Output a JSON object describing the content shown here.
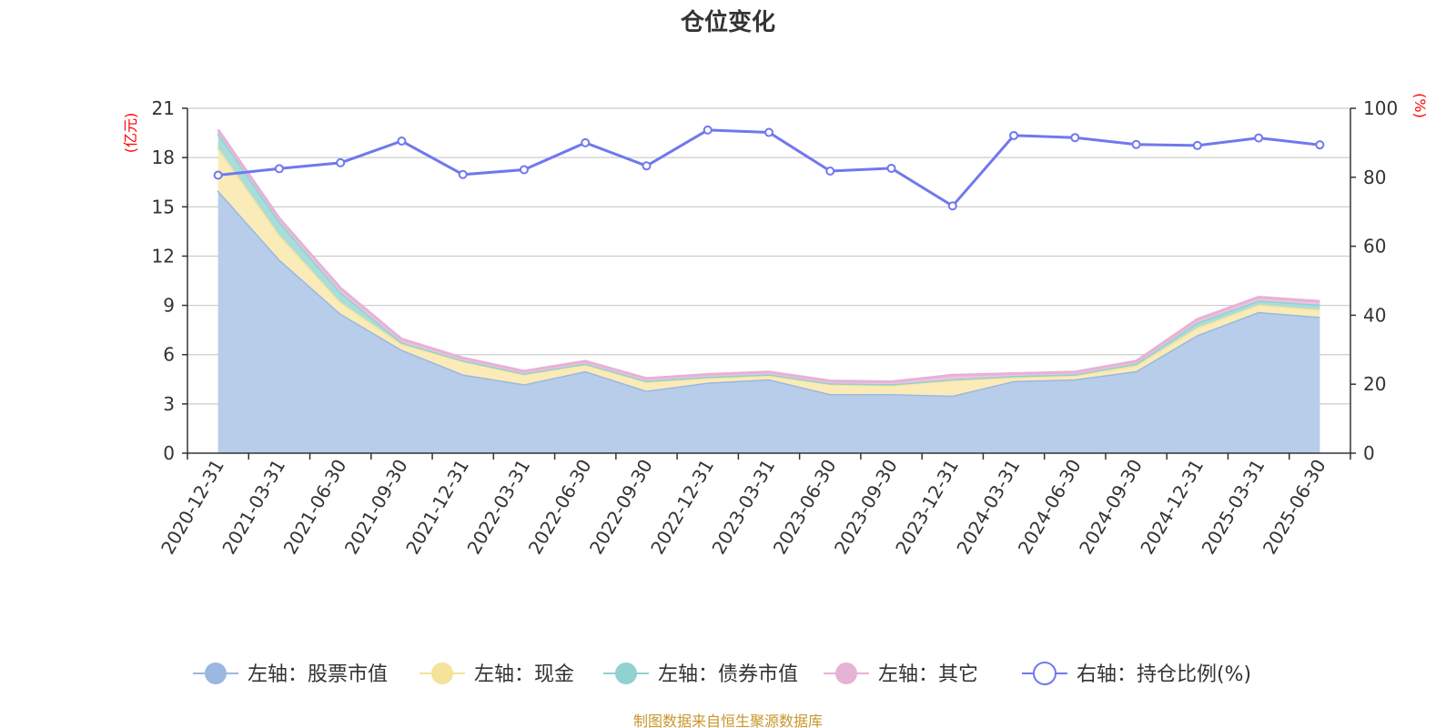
{
  "chart_data": {
    "type": "area",
    "title": "仓位变化",
    "categories": [
      "2020-12-31",
      "2021-03-31",
      "2021-06-30",
      "2021-09-30",
      "2021-12-31",
      "2022-03-31",
      "2022-06-30",
      "2022-09-30",
      "2022-12-31",
      "2023-03-31",
      "2023-06-30",
      "2023-09-30",
      "2023-12-31",
      "2024-03-31",
      "2024-06-30",
      "2024-09-30",
      "2024-12-31",
      "2025-03-31",
      "2025-06-30"
    ],
    "left_axis": {
      "unit": "(亿元)",
      "ylim": [
        0,
        21
      ],
      "ticks": [
        "0",
        "3",
        "6",
        "9",
        "12",
        "15",
        "18",
        "21"
      ]
    },
    "right_axis": {
      "unit": "(%)",
      "ylim": [
        0,
        100
      ],
      "ticks": [
        "0",
        "20",
        "40",
        "60",
        "80",
        "100"
      ]
    },
    "series": [
      {
        "name": "左轴：股票市值",
        "axis": "left",
        "stacked": true,
        "color": "#9ab8e0",
        "fill": "#b8cdea",
        "values": [
          16.0,
          11.8,
          8.5,
          6.3,
          4.8,
          4.2,
          5.0,
          3.8,
          4.3,
          4.5,
          3.6,
          3.6,
          3.5,
          4.4,
          4.5,
          5.0,
          7.2,
          8.6,
          8.3
        ]
      },
      {
        "name": "左轴：现金",
        "axis": "left",
        "stacked": true,
        "color": "#f5e39a",
        "fill": "#faebb8",
        "values": [
          2.6,
          1.5,
          0.7,
          0.35,
          0.8,
          0.6,
          0.4,
          0.55,
          0.3,
          0.25,
          0.6,
          0.55,
          0.95,
          0.25,
          0.25,
          0.35,
          0.45,
          0.45,
          0.45
        ]
      },
      {
        "name": "左轴：债券市值",
        "axis": "left",
        "stacked": true,
        "color": "#8fd2cf",
        "fill": "#a9ddda",
        "values": [
          0.9,
          0.8,
          0.6,
          0.1,
          0.05,
          0.05,
          0.05,
          0.05,
          0.05,
          0.05,
          0.05,
          0.05,
          0.05,
          0.05,
          0.05,
          0.1,
          0.3,
          0.25,
          0.3
        ]
      },
      {
        "name": "左轴：其它",
        "axis": "left",
        "stacked": true,
        "color": "#e6b2d6",
        "fill": "#eec2e0",
        "values": [
          0.2,
          0.2,
          0.25,
          0.2,
          0.15,
          0.15,
          0.15,
          0.15,
          0.15,
          0.15,
          0.15,
          0.15,
          0.25,
          0.15,
          0.15,
          0.15,
          0.2,
          0.2,
          0.2
        ]
      },
      {
        "name": "右轴：持仓比例(%)",
        "axis": "right",
        "type": "line",
        "color": "#7078ee",
        "values": [
          80.6,
          82.5,
          84.2,
          90.5,
          80.8,
          82.2,
          90.0,
          83.3,
          93.7,
          93.0,
          81.8,
          82.6,
          71.7,
          92.1,
          91.5,
          89.5,
          89.2,
          91.4,
          89.4
        ]
      }
    ],
    "legend_position": "bottom",
    "grid": true
  },
  "footer": {
    "source": "制图数据来自恒生聚源数据库"
  }
}
